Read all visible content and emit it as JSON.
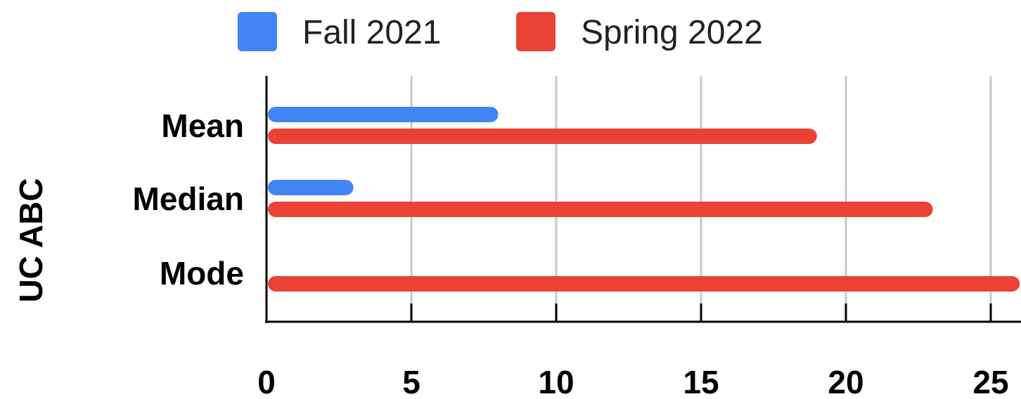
{
  "chart_data": {
    "type": "bar",
    "orientation": "horizontal",
    "categories": [
      "Mean",
      "Median",
      "Mode"
    ],
    "series": [
      {
        "name": "Fall 2021",
        "color": "#4285f4",
        "values": [
          8,
          3,
          0
        ]
      },
      {
        "name": "Spring 2022",
        "color": "#ea4335",
        "values": [
          19,
          23,
          26
        ]
      }
    ],
    "ylabel": "UC ABC",
    "xlabel": "",
    "xlim": [
      0,
      26
    ],
    "xticks": [
      "0",
      "5",
      "10",
      "15",
      "20",
      "25"
    ],
    "grid": true,
    "legend": "top"
  }
}
